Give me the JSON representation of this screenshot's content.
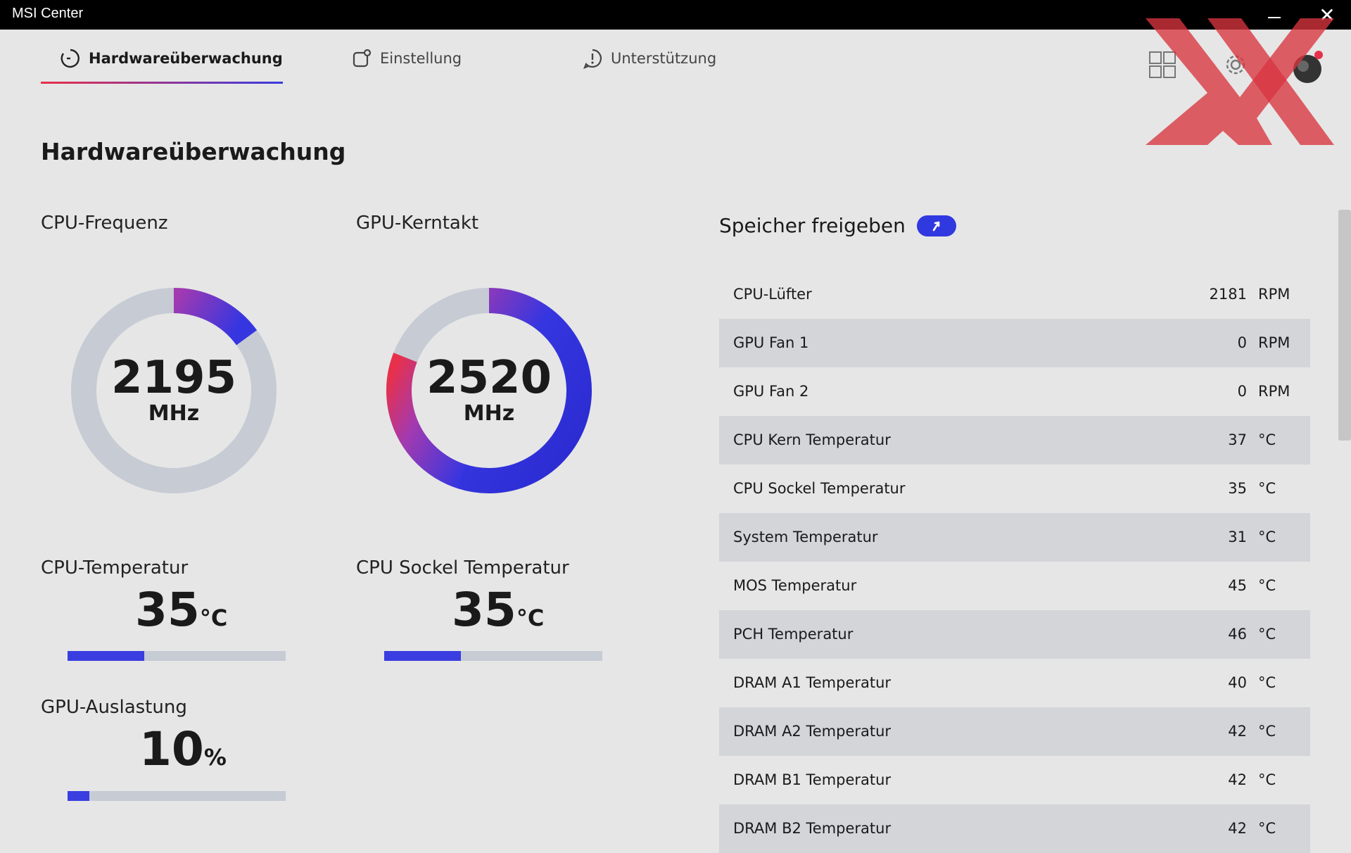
{
  "window": {
    "title": "MSI Center"
  },
  "tabs": [
    {
      "label": "Hardwareüberwachung",
      "icon": "monitor-gauge-icon",
      "active": true
    },
    {
      "label": "Einstellung",
      "icon": "settings-square-icon",
      "active": false
    },
    {
      "label": "Unterstützung",
      "icon": "support-alert-icon",
      "active": false
    }
  ],
  "page": {
    "title": "Hardwareüberwachung"
  },
  "gauges": {
    "cpu": {
      "label": "CPU-Frequenz",
      "value": "2195",
      "unit": "MHz",
      "fraction": 0.15
    },
    "gpu": {
      "label": "GPU-Kerntakt",
      "value": "2520",
      "unit": "MHz",
      "fraction": 0.81
    }
  },
  "stats": {
    "cpu_temp": {
      "label": "CPU-Temperatur",
      "value": "35",
      "unit": "°C",
      "fraction": 0.35
    },
    "socket_temp": {
      "label": "CPU Sockel Temperatur",
      "value": "35",
      "unit": "°C",
      "fraction": 0.35
    },
    "gpu_load": {
      "label": "GPU-Auslastung",
      "value": "10",
      "unit": "%",
      "fraction": 0.1
    }
  },
  "release": {
    "label": "Speicher freigeben"
  },
  "sensors": [
    {
      "name": "CPU-Lüfter",
      "value": "2181",
      "unit": "RPM"
    },
    {
      "name": "GPU Fan 1",
      "value": "0",
      "unit": "RPM"
    },
    {
      "name": "GPU Fan 2",
      "value": "0",
      "unit": "RPM"
    },
    {
      "name": "CPU Kern Temperatur",
      "value": "37",
      "unit": "°C"
    },
    {
      "name": "CPU Sockel Temperatur",
      "value": "35",
      "unit": "°C"
    },
    {
      "name": "System Temperatur",
      "value": "31",
      "unit": "°C"
    },
    {
      "name": "MOS Temperatur",
      "value": "45",
      "unit": "°C"
    },
    {
      "name": "PCH Temperatur",
      "value": "46",
      "unit": "°C"
    },
    {
      "name": "DRAM A1 Temperatur",
      "value": "40",
      "unit": "°C"
    },
    {
      "name": "DRAM A2 Temperatur",
      "value": "42",
      "unit": "°C"
    },
    {
      "name": "DRAM B1 Temperatur",
      "value": "42",
      "unit": "°C"
    },
    {
      "name": "DRAM B2 Temperatur",
      "value": "42",
      "unit": "°C"
    }
  ],
  "colors": {
    "accent_blue": "#3a3ee0",
    "accent_red": "#e8304a",
    "track": "#c6cbd4",
    "watermark": "#d9353f"
  }
}
